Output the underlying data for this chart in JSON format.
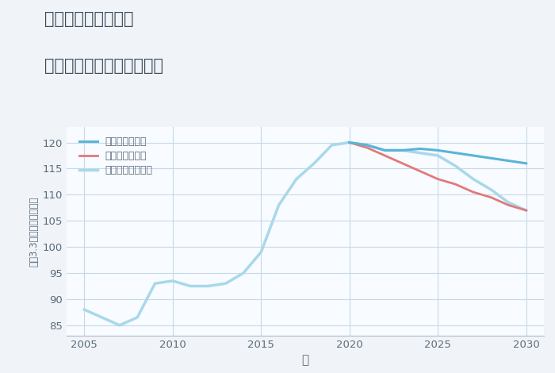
{
  "title_line1": "兵庫県姫路市今宿の",
  "title_line2": "中古マンションの価格推移",
  "xlabel": "年",
  "ylabel": "平（3.3㎡）単価（万円）",
  "bg_color": "#f0f4f8",
  "plot_bg_color": "#f8fbff",
  "grid_color": "#c8d8e8",
  "xlim": [
    2004,
    2031
  ],
  "ylim": [
    83,
    123
  ],
  "xticks": [
    2005,
    2010,
    2015,
    2020,
    2025,
    2030
  ],
  "yticks": [
    85,
    90,
    95,
    100,
    105,
    110,
    115,
    120
  ],
  "normal_x": [
    2005,
    2006,
    2007,
    2008,
    2009,
    2010,
    2011,
    2012,
    2013,
    2014,
    2015,
    2016,
    2017,
    2018,
    2019,
    2020,
    2021,
    2022,
    2023,
    2024,
    2025,
    2026,
    2027,
    2028,
    2029,
    2030
  ],
  "normal_y": [
    88.0,
    86.5,
    85.0,
    86.5,
    93.0,
    93.5,
    92.5,
    92.5,
    93.0,
    95.0,
    99.0,
    108.0,
    113.0,
    116.0,
    119.5,
    120.0,
    119.5,
    118.5,
    118.5,
    118.0,
    117.5,
    115.5,
    113.0,
    111.0,
    108.5,
    107.0
  ],
  "good_x": [
    2020,
    2021,
    2022,
    2023,
    2024,
    2025,
    2026,
    2027,
    2028,
    2029,
    2030
  ],
  "good_y": [
    120.0,
    119.5,
    118.5,
    118.5,
    118.8,
    118.5,
    118.0,
    117.5,
    117.0,
    116.5,
    116.0
  ],
  "bad_x": [
    2020,
    2021,
    2022,
    2023,
    2024,
    2025,
    2026,
    2027,
    2028,
    2029,
    2030
  ],
  "bad_y": [
    120.0,
    119.0,
    117.5,
    116.0,
    114.5,
    113.0,
    112.0,
    110.5,
    109.5,
    108.0,
    107.0
  ],
  "good_color": "#5ab4d6",
  "bad_color": "#e07a7a",
  "normal_color": "#a8d8ea",
  "good_label": "グッドシナリオ",
  "bad_label": "バッドシナリオ",
  "normal_label": "ノーマルシナリオ",
  "title_color": "#3a4a5a",
  "axis_color": "#5a6a7a"
}
